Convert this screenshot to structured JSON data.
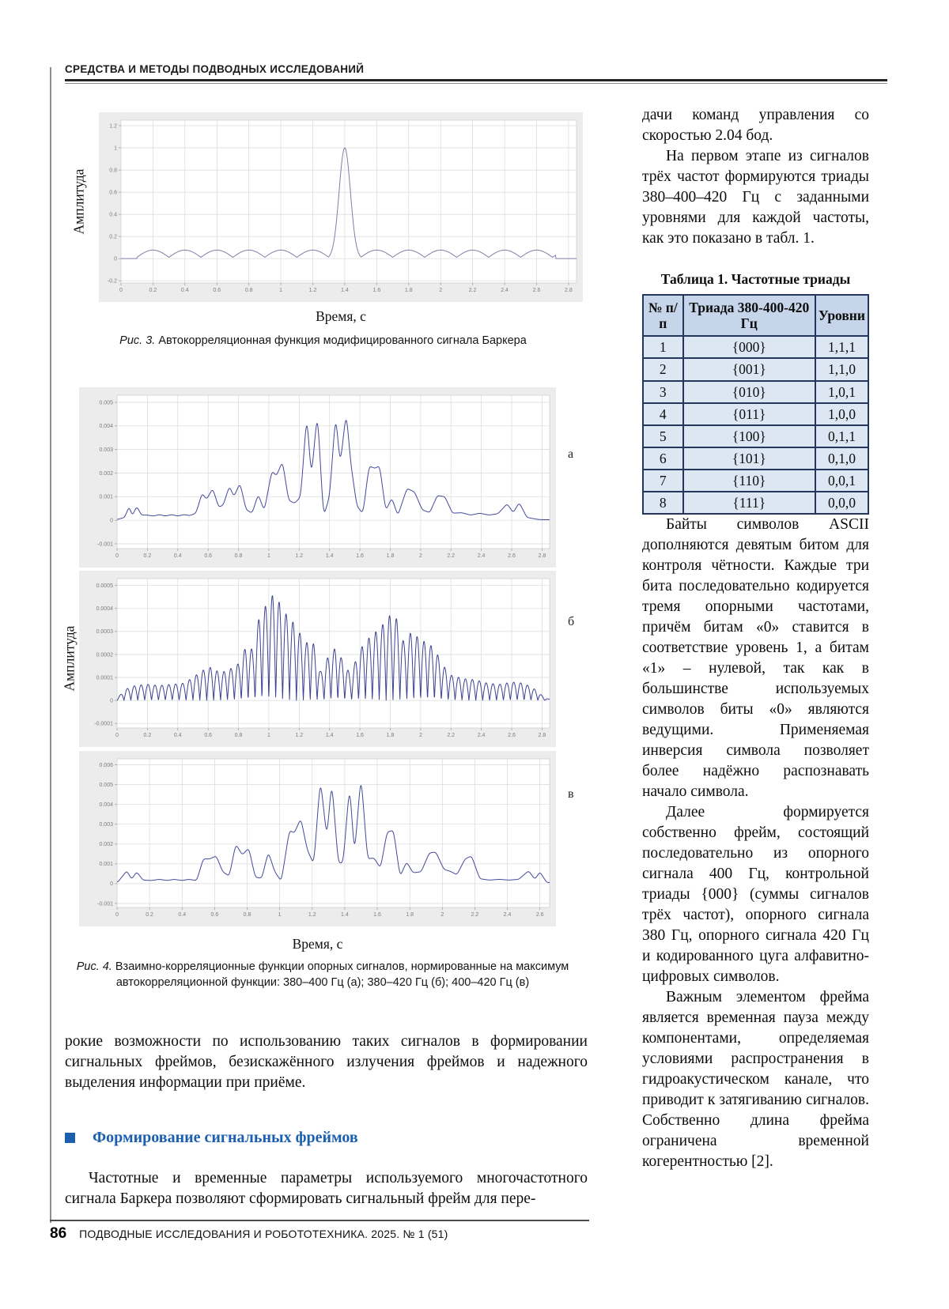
{
  "running_head": "СРЕДСТВА И МЕТОДЫ ПОДВОДНЫХ ИССЛЕДОВАНИЙ",
  "left_column": {
    "figure3": {
      "caption_label": "Рис. 3.",
      "caption_text": " Автокорреляционная функция модифицированного сигнала Баркера",
      "ylabel": "Амплитуда",
      "xlabel": "Время, с"
    },
    "figure4": {
      "caption_label": "Рис. 4.",
      "caption_text": " Взаимно-корреляционные функции опорных сигналов, нормированные на максимум автокорреляционной функции: 380–400 Гц (а); 380–420 Гц (б); 400–420 Гц (в)",
      "ylabel": "Амплитуда",
      "xlabel": "Время, с",
      "subplot_labels": [
        "а",
        "б",
        "в"
      ]
    },
    "paragraph1": "рокие возможности по использованию таких сигналов в формировании сигнальных фреймов, безискажённого излучения фреймов и надежного выделения информации при приёме.",
    "section_heading": "Формирование сигнальных фреймов",
    "paragraph2": "Частотные и временные параметры используемого многочастотного сигнала Баркера позволяют сформировать сигнальный фрейм для пере-"
  },
  "right_column": {
    "paragraph1": "дачи команд управления со скоростью 2.04 бод.",
    "paragraph2": "На первом этапе из сигналов трёх частот формируются триады 380–400–420 Гц с заданными уровнями для каждой частоты, как это показано в табл. 1.",
    "table": {
      "title": "Таблица 1. Частотные триады",
      "headers": [
        "№ п/п",
        "Триада 380-400-420 Гц",
        "Уровни"
      ],
      "rows": [
        [
          "1",
          "{000}",
          "1,1,1"
        ],
        [
          "2",
          "{001}",
          "1,1,0"
        ],
        [
          "3",
          "{010}",
          "1,0,1"
        ],
        [
          "4",
          "{011}",
          "1,0,0"
        ],
        [
          "5",
          "{100}",
          "0,1,1"
        ],
        [
          "6",
          "{101}",
          "0,1,0"
        ],
        [
          "7",
          "{110}",
          "0,0,1"
        ],
        [
          "8",
          "{111}",
          "0,0,0"
        ]
      ]
    },
    "paragraph3": "Байты символов ASCII дополняются девятым битом для контроля чётности. Каждые три бита последовательно кодируется тремя опорными частотами, причём битам «0» ставится в соответствие уровень 1, а битам «1» – нулевой, так как в большинстве используемых символов биты «0» являются ведущими. Применяемая инверсия символа позволяет более надёжно распознавать начало символа.",
    "paragraph4": "Далее формируется собственно фрейм, состоящий последовательно из опорного сигнала 400 Гц, контрольной триады {000} (суммы сигналов трёх частот), опорного сигнала 380 Гц, опорного сигнала 420 Гц и кодированного цуга алфавитно-цифровых символов.",
    "paragraph5": "Важным элементом фрейма является временная пауза между компонентами, определяемая условиями распространения в гидроакустическом канале, что приводит к затягиванию сигналов. Собственно длина фрейма ограничена временной когерентностью [2]."
  },
  "footer": {
    "page_number": "86",
    "journal_line": "ПОДВОДНЫЕ ИССЛЕДОВАНИЯ И РОБОТОТЕХНИКА. 2025. № 1 (51)"
  },
  "colors": {
    "accent_blue": "#1b5fae",
    "table_header_bg": "#c6d5ea",
    "table_row_bg": "#dde7f3",
    "table_border": "#24365c",
    "curve_fig3": "#7d81a3",
    "curve_fig4": "#43489b",
    "panel_bg": "#ececec",
    "grid": "#d9d9d9"
  },
  "chart_data": [
    {
      "id": "fig3",
      "type": "line",
      "title": "Автокорреляционная функция модифицированного сигнала Баркера",
      "xlabel": "Время, с",
      "ylabel": "Амплитуда",
      "xlim": [
        0,
        2.85
      ],
      "ylim": [
        -0.22,
        1.25
      ],
      "x_ticks": [
        0,
        0.2,
        0.4,
        0.6,
        0.8,
        1,
        1.2,
        1.4,
        1.6,
        1.8,
        2,
        2.2,
        2.4,
        2.6,
        2.8
      ],
      "y_ticks": [
        1.2,
        1,
        0.8,
        0.6,
        0.4,
        0.2,
        0,
        -0.2
      ],
      "grid": true,
      "line_color": "#7d81a3",
      "generator": {
        "kind": "peak_ripple",
        "peak_center": 1.4,
        "peak_height": 1.0,
        "peak_sigma": 0.05,
        "ripple_amplitude": 0.065,
        "ripple_period": 0.2,
        "ripple_offset": 0.012,
        "signal_start": 0.1,
        "signal_end": 2.72
      }
    },
    {
      "id": "fig4a",
      "type": "line",
      "title": "Взаимно-корреляционная функция 380–400 Гц (а)",
      "xlabel": "Время, с",
      "ylabel": "Амплитуда",
      "xlim": [
        0,
        2.85
      ],
      "ylim": [
        -0.0012,
        0.0053
      ],
      "x_ticks": [
        0,
        0.2,
        0.4,
        0.6,
        0.8,
        1,
        1.2,
        1.4,
        1.6,
        1.8,
        2,
        2.2,
        2.4,
        2.6,
        2.8
      ],
      "y_ticks": [
        0.005,
        0.004,
        0.003,
        0.002,
        0.001,
        0,
        -0.001
      ],
      "grid": true,
      "line_color": "#43489b",
      "generator": {
        "kind": "envelope",
        "scale": 0.001,
        "points": [
          [
            0,
            0.03
          ],
          [
            0.05,
            0.12
          ],
          [
            0.08,
            0.6
          ],
          [
            0.1,
            0.18
          ],
          [
            0.13,
            0.6
          ],
          [
            0.16,
            0.22
          ],
          [
            0.2,
            0.22
          ],
          [
            0.24,
            0.18
          ],
          [
            0.28,
            0.24
          ],
          [
            0.32,
            0.18
          ],
          [
            0.36,
            0.24
          ],
          [
            0.4,
            0.18
          ],
          [
            0.44,
            0.24
          ],
          [
            0.48,
            0.2
          ],
          [
            0.52,
            0.3
          ],
          [
            0.56,
            1.15
          ],
          [
            0.59,
            0.88
          ],
          [
            0.63,
            1.35
          ],
          [
            0.67,
            0.55
          ],
          [
            0.7,
            0.65
          ],
          [
            0.74,
            1.45
          ],
          [
            0.77,
            1.0
          ],
          [
            0.81,
            1.58
          ],
          [
            0.85,
            0.45
          ],
          [
            0.89,
            0.3
          ],
          [
            0.93,
            1.1
          ],
          [
            0.97,
            0.4
          ],
          [
            1.02,
            2.1
          ],
          [
            1.05,
            1.88
          ],
          [
            1.09,
            2.5
          ],
          [
            1.13,
            0.85
          ],
          [
            1.17,
            0.72
          ],
          [
            1.21,
            1.0
          ],
          [
            1.25,
            4.5
          ],
          [
            1.28,
            1.8
          ],
          [
            1.32,
            4.6
          ],
          [
            1.36,
            0.15
          ],
          [
            1.4,
            1.0
          ],
          [
            1.44,
            4.5
          ],
          [
            1.47,
            2.35
          ],
          [
            1.51,
            4.6
          ],
          [
            1.54,
            2.4
          ],
          [
            1.58,
            0.6
          ],
          [
            1.62,
            0.28
          ],
          [
            1.66,
            2.3
          ],
          [
            1.7,
            2.2
          ],
          [
            1.73,
            2.32
          ],
          [
            1.77,
            0.4
          ],
          [
            1.81,
            0.95
          ],
          [
            1.85,
            0.2
          ],
          [
            1.91,
            1.35
          ],
          [
            1.96,
            1.2
          ],
          [
            2.01,
            0.45
          ],
          [
            2.06,
            0.32
          ],
          [
            2.11,
            1.05
          ],
          [
            2.16,
            1.0
          ],
          [
            2.21,
            0.3
          ],
          [
            2.27,
            0.32
          ],
          [
            2.33,
            0.22
          ],
          [
            2.39,
            0.3
          ],
          [
            2.45,
            0.22
          ],
          [
            2.51,
            0.28
          ],
          [
            2.57,
            0.7
          ],
          [
            2.61,
            0.32
          ],
          [
            2.65,
            0.75
          ],
          [
            2.7,
            0.12
          ],
          [
            2.78,
            0.03
          ],
          [
            2.85,
            0.02
          ]
        ]
      }
    },
    {
      "id": "fig4b",
      "type": "line",
      "title": "Взаимно-корреляционная функция 380–420 Гц (б)",
      "xlabel": "Время, с",
      "ylabel": "Амплитуда",
      "xlim": [
        0,
        2.85
      ],
      "ylim": [
        -0.00012,
        0.00053
      ],
      "x_ticks": [
        0,
        0.2,
        0.4,
        0.6,
        0.8,
        1,
        1.2,
        1.4,
        1.6,
        1.8,
        2,
        2.2,
        2.4,
        2.6,
        2.8
      ],
      "y_ticks": [
        0.0005,
        0.0004,
        0.0003,
        0.0002,
        0.0001,
        0,
        -0.0001
      ],
      "grid": true,
      "line_color": "#3c4192",
      "generator": {
        "kind": "modulated",
        "scale": 0.0001,
        "carrier": 11,
        "points": [
          [
            0,
            0.1
          ],
          [
            0.06,
            0.5
          ],
          [
            0.12,
            0.65
          ],
          [
            0.2,
            0.7
          ],
          [
            0.28,
            0.65
          ],
          [
            0.36,
            0.7
          ],
          [
            0.44,
            0.75
          ],
          [
            0.5,
            1.0
          ],
          [
            0.56,
            1.3
          ],
          [
            0.62,
            1.45
          ],
          [
            0.68,
            1.2
          ],
          [
            0.74,
            1.35
          ],
          [
            0.8,
            1.6
          ],
          [
            0.85,
            2.35
          ],
          [
            0.9,
            2.2
          ],
          [
            0.94,
            3.8
          ],
          [
            0.99,
            4.2
          ],
          [
            1.04,
            4.75
          ],
          [
            1.09,
            3.9
          ],
          [
            1.14,
            3.6
          ],
          [
            1.19,
            3.1
          ],
          [
            1.24,
            2.5
          ],
          [
            1.29,
            2.6
          ],
          [
            1.34,
            1.2
          ],
          [
            1.39,
            1.9
          ],
          [
            1.44,
            2.3
          ],
          [
            1.49,
            1.7
          ],
          [
            1.54,
            1.1
          ],
          [
            1.59,
            2.1
          ],
          [
            1.64,
            2.6
          ],
          [
            1.69,
            2.9
          ],
          [
            1.74,
            3.2
          ],
          [
            1.79,
            3.7
          ],
          [
            1.84,
            3.6
          ],
          [
            1.89,
            2.5
          ],
          [
            1.94,
            3.0
          ],
          [
            1.99,
            2.7
          ],
          [
            2.04,
            2.5
          ],
          [
            2.09,
            2.3
          ],
          [
            2.14,
            1.6
          ],
          [
            2.2,
            1.1
          ],
          [
            2.28,
            0.95
          ],
          [
            2.36,
            0.9
          ],
          [
            2.44,
            0.75
          ],
          [
            2.52,
            0.7
          ],
          [
            2.6,
            0.8
          ],
          [
            2.68,
            0.75
          ],
          [
            2.75,
            0.5
          ],
          [
            2.82,
            0.1
          ],
          [
            2.85,
            0.05
          ]
        ]
      }
    },
    {
      "id": "fig4v",
      "type": "line",
      "title": "Взаимно-корреляционная функция 400–420 Гц (в)",
      "xlabel": "Время, с",
      "ylabel": "Амплитуда",
      "xlim": [
        0,
        2.66
      ],
      "ylim": [
        -0.0012,
        0.0063
      ],
      "x_ticks": [
        0,
        0.2,
        0.4,
        0.6,
        0.8,
        1,
        1.2,
        1.4,
        1.6,
        1.8,
        2,
        2.2,
        2.4,
        2.6
      ],
      "y_ticks": [
        0.006,
        0.005,
        0.004,
        0.003,
        0.002,
        0.001,
        0,
        -0.001
      ],
      "grid": true,
      "line_color": "#43489b",
      "generator": {
        "kind": "envelope",
        "scale": 0.001,
        "points": [
          [
            0,
            0.03
          ],
          [
            0.06,
            0.65
          ],
          [
            0.09,
            0.22
          ],
          [
            0.12,
            0.6
          ],
          [
            0.16,
            0.18
          ],
          [
            0.21,
            0.16
          ],
          [
            0.26,
            0.22
          ],
          [
            0.31,
            0.16
          ],
          [
            0.35,
            0.22
          ],
          [
            0.4,
            0.16
          ],
          [
            0.44,
            0.22
          ],
          [
            0.49,
            0.16
          ],
          [
            0.53,
            1.25
          ],
          [
            0.57,
            1.25
          ],
          [
            0.61,
            1.4
          ],
          [
            0.65,
            0.6
          ],
          [
            0.69,
            0.38
          ],
          [
            0.73,
            2.0
          ],
          [
            0.77,
            1.45
          ],
          [
            0.81,
            1.8
          ],
          [
            0.85,
            0.32
          ],
          [
            0.89,
            0.28
          ],
          [
            0.93,
            1.6
          ],
          [
            0.97,
            0.6
          ],
          [
            1.01,
            0.12
          ],
          [
            1.06,
            2.7
          ],
          [
            1.09,
            2.55
          ],
          [
            1.13,
            3.3
          ],
          [
            1.17,
            1.7
          ],
          [
            1.21,
            0.98
          ],
          [
            1.25,
            5.3
          ],
          [
            1.29,
            2.3
          ],
          [
            1.32,
            5.2
          ],
          [
            1.36,
            1.05
          ],
          [
            1.39,
            1.05
          ],
          [
            1.43,
            5.0
          ],
          [
            1.46,
            1.45
          ],
          [
            1.5,
            5.5
          ],
          [
            1.54,
            1.25
          ],
          [
            1.58,
            1.3
          ],
          [
            1.62,
            0.78
          ],
          [
            1.66,
            2.6
          ],
          [
            1.7,
            2.7
          ],
          [
            1.74,
            0.35
          ],
          [
            1.78,
            1.1
          ],
          [
            1.82,
            0.55
          ],
          [
            1.87,
            0.6
          ],
          [
            1.92,
            1.55
          ],
          [
            1.96,
            1.6
          ],
          [
            2.01,
            0.72
          ],
          [
            2.05,
            0.62
          ],
          [
            2.09,
            0.45
          ],
          [
            2.14,
            1.25
          ],
          [
            2.18,
            1.4
          ],
          [
            2.23,
            0.25
          ],
          [
            2.29,
            0.18
          ],
          [
            2.35,
            0.22
          ],
          [
            2.41,
            0.18
          ],
          [
            2.47,
            0.22
          ],
          [
            2.53,
            0.65
          ],
          [
            2.57,
            0.22
          ],
          [
            2.6,
            0.6
          ],
          [
            2.64,
            0.08
          ],
          [
            2.66,
            0.04
          ]
        ]
      }
    }
  ]
}
